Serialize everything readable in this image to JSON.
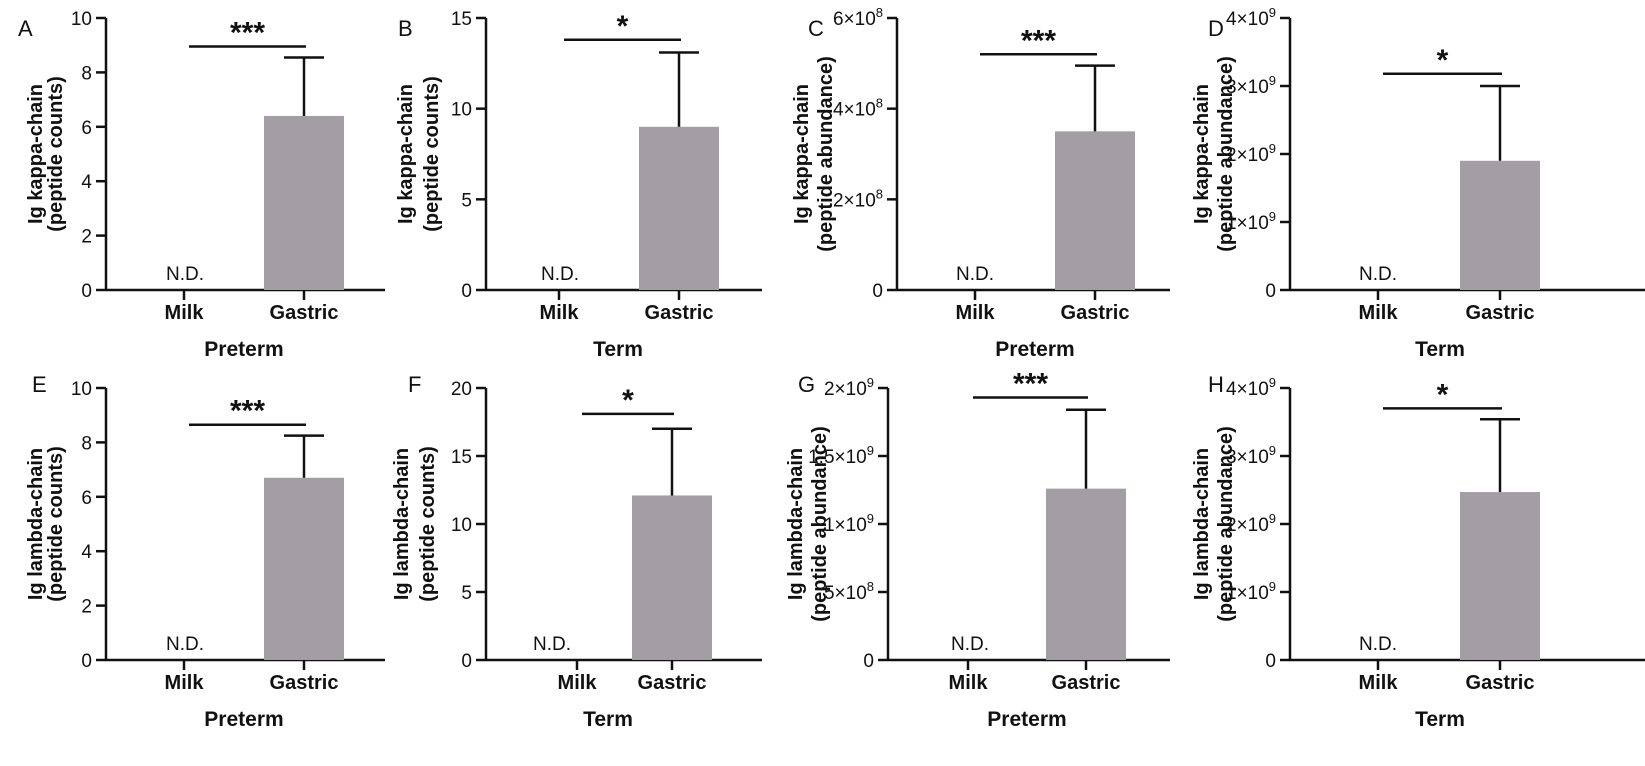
{
  "chart_data": [
    {
      "panel": "A",
      "type": "bar",
      "ylabel": [
        "Ig kappa-chain",
        "(peptide counts)"
      ],
      "xlabel": "Preterm",
      "categories": [
        "Milk",
        "Gastric"
      ],
      "values": [
        null,
        6.4
      ],
      "errors": [
        null,
        2.15
      ],
      "ylim": [
        0,
        10
      ],
      "yticks": [
        {
          "v": 0,
          "l": "0"
        },
        {
          "v": 2,
          "l": "2"
        },
        {
          "v": 4,
          "l": "4"
        },
        {
          "v": 6,
          "l": "6"
        },
        {
          "v": 8,
          "l": "8"
        },
        {
          "v": 10,
          "l": "10"
        }
      ],
      "annotations": {
        "nd": "N.D.",
        "significance": "***",
        "sig_y": 8.95
      }
    },
    {
      "panel": "B",
      "type": "bar",
      "ylabel": [
        "Ig kappa-chain",
        "(peptide counts)"
      ],
      "xlabel": "Term",
      "categories": [
        "Milk",
        "Gastric"
      ],
      "values": [
        null,
        9.0
      ],
      "errors": [
        null,
        4.1
      ],
      "ylim": [
        0,
        15
      ],
      "yticks": [
        {
          "v": 0,
          "l": "0"
        },
        {
          "v": 5,
          "l": "5"
        },
        {
          "v": 10,
          "l": "10"
        },
        {
          "v": 15,
          "l": "15"
        }
      ],
      "annotations": {
        "nd": "N.D.",
        "significance": "*",
        "sig_y": 13.8
      }
    },
    {
      "panel": "C",
      "type": "bar",
      "ylabel": [
        "Ig kappa-chain",
        "(peptide abundance)"
      ],
      "xlabel": "Preterm",
      "categories": [
        "Milk",
        "Gastric"
      ],
      "values": [
        null,
        350000000
      ],
      "errors": [
        null,
        145000000
      ],
      "ylim": [
        0,
        600000000
      ],
      "yticks": [
        {
          "v": 0,
          "l": "0"
        },
        {
          "v": 200000000,
          "l": "2×10",
          "e": "8"
        },
        {
          "v": 400000000,
          "l": "4×10",
          "e": "8"
        },
        {
          "v": 600000000,
          "l": "6×10",
          "e": "8"
        }
      ],
      "annotations": {
        "nd": "N.D.",
        "significance": "***",
        "sig_y": 520000000
      }
    },
    {
      "panel": "D",
      "type": "bar",
      "ylabel": [
        "Ig kappa-chain",
        "(peptide abundance)"
      ],
      "xlabel": "Term",
      "categories": [
        "Milk",
        "Gastric"
      ],
      "values": [
        null,
        1900000000
      ],
      "errors": [
        null,
        1100000000
      ],
      "ylim": [
        0,
        4000000000
      ],
      "yticks": [
        {
          "v": 0,
          "l": "0"
        },
        {
          "v": 1000000000,
          "l": "1×10",
          "e": "9"
        },
        {
          "v": 2000000000,
          "l": "2×10",
          "e": "9"
        },
        {
          "v": 3000000000,
          "l": "3×10",
          "e": "9"
        },
        {
          "v": 4000000000,
          "l": "4×10",
          "e": "9"
        }
      ],
      "annotations": {
        "nd": "N.D.",
        "significance": "*",
        "sig_y": 3180000000
      }
    },
    {
      "panel": "E",
      "type": "bar",
      "ylabel": [
        "Ig lambda-chain",
        "(peptide counts)"
      ],
      "xlabel": "Preterm",
      "categories": [
        "Milk",
        "Gastric"
      ],
      "values": [
        null,
        6.7
      ],
      "errors": [
        null,
        1.55
      ],
      "ylim": [
        0,
        10
      ],
      "yticks": [
        {
          "v": 0,
          "l": "0"
        },
        {
          "v": 2,
          "l": "2"
        },
        {
          "v": 4,
          "l": "4"
        },
        {
          "v": 6,
          "l": "6"
        },
        {
          "v": 8,
          "l": "8"
        },
        {
          "v": 10,
          "l": "10"
        }
      ],
      "annotations": {
        "nd": "N.D.",
        "significance": "***",
        "sig_y": 8.65
      }
    },
    {
      "panel": "F",
      "type": "bar",
      "ylabel": [
        "Ig lambda-chain",
        "(peptide counts)"
      ],
      "xlabel": "Term",
      "categories": [
        "Milk",
        "Gastric"
      ],
      "values": [
        null,
        12.1
      ],
      "errors": [
        null,
        4.9
      ],
      "ylim": [
        0,
        20
      ],
      "yticks": [
        {
          "v": 0,
          "l": "0"
        },
        {
          "v": 5,
          "l": "5"
        },
        {
          "v": 10,
          "l": "10"
        },
        {
          "v": 15,
          "l": "15"
        },
        {
          "v": 20,
          "l": "20"
        }
      ],
      "annotations": {
        "nd": "N.D.",
        "significance": "*",
        "sig_y": 18.1
      }
    },
    {
      "panel": "G",
      "type": "bar",
      "ylabel": [
        "Ig lambda-chain",
        "(peptide abundance)"
      ],
      "xlabel": "Preterm",
      "categories": [
        "Milk",
        "Gastric"
      ],
      "values": [
        null,
        1260000000
      ],
      "errors": [
        null,
        580000000
      ],
      "ylim": [
        0,
        2000000000
      ],
      "yticks": [
        {
          "v": 0,
          "l": "0"
        },
        {
          "v": 500000000,
          "l": "5×10",
          "e": "8"
        },
        {
          "v": 1000000000,
          "l": "1×10",
          "e": "9"
        },
        {
          "v": 1500000000,
          "l": "1.5×10",
          "e": "9"
        },
        {
          "v": 2000000000,
          "l": "2×10",
          "e": "9"
        }
      ],
      "annotations": {
        "nd": "N.D.",
        "significance": "***",
        "sig_y": 1930000000
      }
    },
    {
      "panel": "H",
      "type": "bar",
      "ylabel": [
        "Ig lambda-chain",
        "(peptide abundance)"
      ],
      "xlabel": "Term",
      "categories": [
        "Milk",
        "Gastric"
      ],
      "values": [
        null,
        2470000000
      ],
      "errors": [
        null,
        1070000000
      ],
      "ylim": [
        0,
        4000000000
      ],
      "yticks": [
        {
          "v": 0,
          "l": "0"
        },
        {
          "v": 1000000000,
          "l": "1×10",
          "e": "9"
        },
        {
          "v": 2000000000,
          "l": "2×10",
          "e": "9"
        },
        {
          "v": 3000000000,
          "l": "3×10",
          "e": "9"
        },
        {
          "v": 4000000000,
          "l": "4×10",
          "e": "9"
        }
      ],
      "annotations": {
        "nd": "N.D.",
        "significance": "*",
        "sig_y": 3700000000
      }
    }
  ],
  "colors": {
    "bar": "#a39ea3",
    "axis": "#111111"
  }
}
